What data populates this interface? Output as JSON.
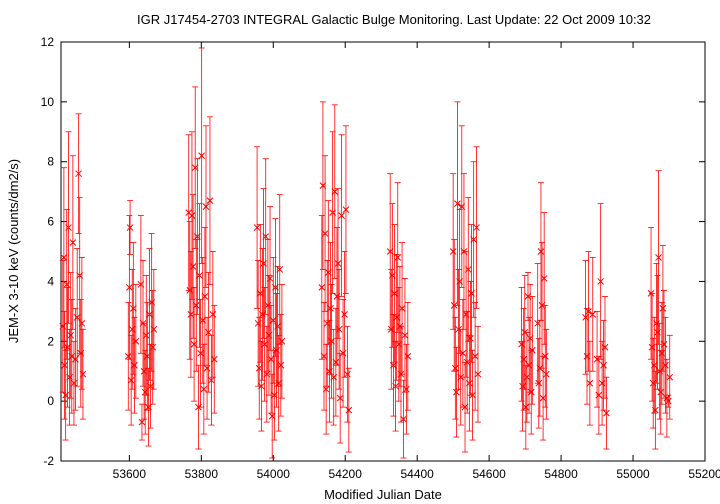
{
  "chart_data": {
    "type": "scatter",
    "title": "IGR J17454-2703   INTEGRAL Galactic Bulge Monitoring.  Last Update: 22 Oct 2009 10:32",
    "xlabel": "Modified Julian Date",
    "ylabel": "JEM-X 3-10 keV (counts/dm2/s)",
    "xlim": [
      53410,
      55200
    ],
    "ylim": [
      -2,
      12
    ],
    "xticks": [
      "53600",
      "53800",
      "54000",
      "54200",
      "54400",
      "54600",
      "54800",
      "55000",
      "55200"
    ],
    "yticks": [
      "-2",
      "0",
      "2",
      "4",
      "6",
      "8",
      "10",
      "12"
    ],
    "grid": false,
    "legend": "none",
    "marker": "x",
    "color": "#ff0000",
    "series": [
      {
        "points": [
          {
            "x": 53415,
            "y": 2.5,
            "err": 2.2
          },
          {
            "x": 53418,
            "y": 4.8,
            "err": 3.0
          },
          {
            "x": 53420,
            "y": 1.2,
            "err": 1.8
          },
          {
            "x": 53423,
            "y": 0.2,
            "err": 1.5
          },
          {
            "x": 53426,
            "y": 3.9,
            "err": 2.5
          },
          {
            "x": 53428,
            "y": 1.8,
            "err": 2.0
          },
          {
            "x": 53431,
            "y": 5.8,
            "err": 3.2
          },
          {
            "x": 53434,
            "y": 0.8,
            "err": 1.6
          },
          {
            "x": 53437,
            "y": 2.2,
            "err": 2.1
          },
          {
            "x": 53440,
            "y": 1.5,
            "err": 1.9
          },
          {
            "x": 53443,
            "y": 5.3,
            "err": 2.9
          },
          {
            "x": 53446,
            "y": 0.6,
            "err": 1.4
          },
          {
            "x": 53450,
            "y": 1.4,
            "err": 1.7
          },
          {
            "x": 53455,
            "y": 2.8,
            "err": 2.3
          },
          {
            "x": 53459,
            "y": 7.6,
            "err": 2.0
          },
          {
            "x": 53462,
            "y": 4.2,
            "err": 2.6
          },
          {
            "x": 53465,
            "y": 1.6,
            "err": 1.8
          },
          {
            "x": 53468,
            "y": 2.6,
            "err": 2.2
          },
          {
            "x": 53471,
            "y": 0.9,
            "err": 1.5
          },
          {
            "x": 53597,
            "y": 1.5,
            "err": 1.8
          },
          {
            "x": 53600,
            "y": 3.8,
            "err": 2.4
          },
          {
            "x": 53602,
            "y": 5.8,
            "err": 0.9
          },
          {
            "x": 53605,
            "y": 0.7,
            "err": 1.5
          },
          {
            "x": 53608,
            "y": 2.4,
            "err": 2.0
          },
          {
            "x": 53611,
            "y": 3.1,
            "err": 2.2
          },
          {
            "x": 53614,
            "y": 1.2,
            "err": 1.6
          },
          {
            "x": 53618,
            "y": 2.0,
            "err": 1.9
          },
          {
            "x": 53632,
            "y": 3.9,
            "err": 2.3
          },
          {
            "x": 53635,
            "y": -0.7,
            "err": 0.6
          },
          {
            "x": 53638,
            "y": 2.6,
            "err": 2.1
          },
          {
            "x": 53641,
            "y": 1.0,
            "err": 1.6
          },
          {
            "x": 53644,
            "y": 0.3,
            "err": 1.4
          },
          {
            "x": 53647,
            "y": 2.2,
            "err": 2.0
          },
          {
            "x": 53650,
            "y": 1.5,
            "err": 1.8
          },
          {
            "x": 53653,
            "y": -0.2,
            "err": 1.3
          },
          {
            "x": 53656,
            "y": 2.9,
            "err": 2.2
          },
          {
            "x": 53659,
            "y": 0.5,
            "err": 1.4
          },
          {
            "x": 53662,
            "y": 3.3,
            "err": 2.3
          },
          {
            "x": 53665,
            "y": 1.8,
            "err": 1.9
          },
          {
            "x": 53668,
            "y": 2.4,
            "err": 2.0
          },
          {
            "x": 53765,
            "y": 6.3,
            "err": 2.6
          },
          {
            "x": 53768,
            "y": 3.7,
            "err": 2.3
          },
          {
            "x": 53771,
            "y": 2.9,
            "err": 2.1
          },
          {
            "x": 53774,
            "y": 6.2,
            "err": 2.8
          },
          {
            "x": 53777,
            "y": 4.5,
            "err": 2.4
          },
          {
            "x": 53780,
            "y": 1.9,
            "err": 1.9
          },
          {
            "x": 53783,
            "y": 7.8,
            "err": 2.7
          },
          {
            "x": 53786,
            "y": 3.2,
            "err": 2.2
          },
          {
            "x": 53789,
            "y": 5.5,
            "err": 2.6
          },
          {
            "x": 53792,
            "y": -0.2,
            "err": 1.4
          },
          {
            "x": 53795,
            "y": 4.2,
            "err": 2.4
          },
          {
            "x": 53798,
            "y": 1.6,
            "err": 1.8
          },
          {
            "x": 53801,
            "y": 8.2,
            "err": 3.6
          },
          {
            "x": 53804,
            "y": 2.7,
            "err": 2.1
          },
          {
            "x": 53807,
            "y": 0.4,
            "err": 1.5
          },
          {
            "x": 53810,
            "y": 3.5,
            "err": 2.3
          },
          {
            "x": 53813,
            "y": 6.5,
            "err": 2.7
          },
          {
            "x": 53816,
            "y": 1.1,
            "err": 1.7
          },
          {
            "x": 53820,
            "y": 2.3,
            "err": 2.0
          },
          {
            "x": 53824,
            "y": 6.7,
            "err": 2.8
          },
          {
            "x": 53828,
            "y": 0.7,
            "err": 1.5
          },
          {
            "x": 53832,
            "y": 2.9,
            "err": 2.1
          },
          {
            "x": 53836,
            "y": 1.4,
            "err": 1.8
          },
          {
            "x": 53955,
            "y": 5.8,
            "err": 2.7
          },
          {
            "x": 53958,
            "y": 2.6,
            "err": 2.1
          },
          {
            "x": 53961,
            "y": 1.1,
            "err": 1.7
          },
          {
            "x": 53964,
            "y": 3.6,
            "err": 2.3
          },
          {
            "x": 53967,
            "y": 0.5,
            "err": 1.5
          },
          {
            "x": 53970,
            "y": 2.9,
            "err": 2.2
          },
          {
            "x": 53973,
            "y": 4.6,
            "err": 2.5
          },
          {
            "x": 53976,
            "y": 1.9,
            "err": 1.9
          },
          {
            "x": 53979,
            "y": 5.5,
            "err": 2.6
          },
          {
            "x": 53982,
            "y": 0.9,
            "err": 1.6
          },
          {
            "x": 53985,
            "y": 3.2,
            "err": 2.2
          },
          {
            "x": 53988,
            "y": 2.2,
            "err": 2.0
          },
          {
            "x": 53991,
            "y": 4.1,
            "err": 2.4
          },
          {
            "x": 53994,
            "y": 1.4,
            "err": 1.8
          },
          {
            "x": 53997,
            "y": -0.5,
            "err": 1.4
          },
          {
            "x": 54000,
            "y": 2.7,
            "err": 2.1
          },
          {
            "x": 54003,
            "y": 0.2,
            "err": 1.5
          },
          {
            "x": 54006,
            "y": 3.8,
            "err": 2.3
          },
          {
            "x": 54009,
            "y": 1.7,
            "err": 1.9
          },
          {
            "x": 54012,
            "y": 2.5,
            "err": 2.0
          },
          {
            "x": 54015,
            "y": 0.6,
            "err": 1.6
          },
          {
            "x": 54018,
            "y": 4.4,
            "err": 2.5
          },
          {
            "x": 54021,
            "y": 1.2,
            "err": 1.7
          },
          {
            "x": 54024,
            "y": 2.0,
            "err": 1.9
          },
          {
            "x": 54135,
            "y": 3.8,
            "err": 2.4
          },
          {
            "x": 54138,
            "y": 7.2,
            "err": 2.8
          },
          {
            "x": 54141,
            "y": 1.5,
            "err": 1.8
          },
          {
            "x": 54144,
            "y": 5.6,
            "err": 2.6
          },
          {
            "x": 54147,
            "y": 0.4,
            "err": 1.5
          },
          {
            "x": 54150,
            "y": 2.6,
            "err": 2.1
          },
          {
            "x": 54153,
            "y": 4.3,
            "err": 2.4
          },
          {
            "x": 54156,
            "y": 1.0,
            "err": 1.7
          },
          {
            "x": 54159,
            "y": 3.1,
            "err": 2.2
          },
          {
            "x": 54162,
            "y": 2.0,
            "err": 1.9
          },
          {
            "x": 54165,
            "y": 6.3,
            "err": 2.7
          },
          {
            "x": 54168,
            "y": 0.8,
            "err": 1.6
          },
          {
            "x": 54171,
            "y": 7.0,
            "err": 2.9
          },
          {
            "x": 54174,
            "y": 1.3,
            "err": 1.8
          },
          {
            "x": 54177,
            "y": 3.5,
            "err": 2.3
          },
          {
            "x": 54180,
            "y": 4.6,
            "err": 2.5
          },
          {
            "x": 54183,
            "y": 2.4,
            "err": 2.0
          },
          {
            "x": 54186,
            "y": 0.1,
            "err": 1.5
          },
          {
            "x": 54190,
            "y": 6.2,
            "err": 2.7
          },
          {
            "x": 54194,
            "y": 1.6,
            "err": 1.8
          },
          {
            "x": 54198,
            "y": 2.9,
            "err": 2.1
          },
          {
            "x": 54202,
            "y": 6.4,
            "err": 2.8
          },
          {
            "x": 54206,
            "y": 0.9,
            "err": 1.6
          },
          {
            "x": 54210,
            "y": -0.3,
            "err": 1.4
          },
          {
            "x": 54325,
            "y": 5.0,
            "err": 2.6
          },
          {
            "x": 54328,
            "y": 2.4,
            "err": 2.0
          },
          {
            "x": 54331,
            "y": 4.2,
            "err": 2.4
          },
          {
            "x": 54334,
            "y": 1.2,
            "err": 1.7
          },
          {
            "x": 54337,
            "y": 3.6,
            "err": 2.3
          },
          {
            "x": 54340,
            "y": 0.5,
            "err": 1.5
          },
          {
            "x": 54343,
            "y": 2.8,
            "err": 2.1
          },
          {
            "x": 54346,
            "y": 4.8,
            "err": 2.5
          },
          {
            "x": 54349,
            "y": 1.9,
            "err": 1.9
          },
          {
            "x": 54352,
            "y": 2.5,
            "err": 2.0
          },
          {
            "x": 54355,
            "y": 0.9,
            "err": 1.6
          },
          {
            "x": 54358,
            "y": 3.1,
            "err": 2.2
          },
          {
            "x": 54362,
            "y": -0.6,
            "err": 1.3
          },
          {
            "x": 54366,
            "y": 2.2,
            "err": 1.9
          },
          {
            "x": 54370,
            "y": 0.4,
            "err": 1.5
          },
          {
            "x": 54374,
            "y": 1.5,
            "err": 1.8
          },
          {
            "x": 54500,
            "y": 5.0,
            "err": 2.6
          },
          {
            "x": 54503,
            "y": 3.2,
            "err": 2.2
          },
          {
            "x": 54506,
            "y": 1.1,
            "err": 1.7
          },
          {
            "x": 54509,
            "y": 0.3,
            "err": 1.5
          },
          {
            "x": 54512,
            "y": 6.6,
            "err": 3.4
          },
          {
            "x": 54515,
            "y": 2.4,
            "err": 2.0
          },
          {
            "x": 54518,
            "y": 4.0,
            "err": 2.4
          },
          {
            "x": 54521,
            "y": 0.8,
            "err": 1.6
          },
          {
            "x": 54524,
            "y": 6.5,
            "err": 2.7
          },
          {
            "x": 54527,
            "y": 1.6,
            "err": 1.8
          },
          {
            "x": 54530,
            "y": 5.0,
            "err": 2.6
          },
          {
            "x": 54533,
            "y": -0.2,
            "err": 1.5
          },
          {
            "x": 54536,
            "y": 2.9,
            "err": 2.1
          },
          {
            "x": 54539,
            "y": 1.3,
            "err": 1.7
          },
          {
            "x": 54542,
            "y": 4.4,
            "err": 2.4
          },
          {
            "x": 54545,
            "y": 0.6,
            "err": 1.6
          },
          {
            "x": 54548,
            "y": 2.1,
            "err": 1.9
          },
          {
            "x": 54551,
            "y": 3.6,
            "err": 2.3
          },
          {
            "x": 54554,
            "y": 0.2,
            "err": 1.5
          },
          {
            "x": 54557,
            "y": 5.4,
            "err": 2.6
          },
          {
            "x": 54561,
            "y": 1.5,
            "err": 1.8
          },
          {
            "x": 54565,
            "y": 5.8,
            "err": 2.7
          },
          {
            "x": 54569,
            "y": 0.9,
            "err": 1.6
          },
          {
            "x": 54690,
            "y": 1.9,
            "err": 1.9
          },
          {
            "x": 54693,
            "y": 0.5,
            "err": 1.5
          },
          {
            "x": 54696,
            "y": 1.4,
            "err": 1.7
          },
          {
            "x": 54699,
            "y": 2.3,
            "err": 1.9
          },
          {
            "x": 54702,
            "y": -0.2,
            "err": 1.4
          },
          {
            "x": 54705,
            "y": 0.8,
            "err": 1.5
          },
          {
            "x": 54708,
            "y": 3.5,
            "err": 0.8
          },
          {
            "x": 54711,
            "y": 1.2,
            "err": 1.6
          },
          {
            "x": 54714,
            "y": 2.1,
            "err": 1.8
          },
          {
            "x": 54717,
            "y": 0.3,
            "err": 1.4
          },
          {
            "x": 54720,
            "y": 1.7,
            "err": 1.8
          },
          {
            "x": 54735,
            "y": 2.6,
            "err": 2.0
          },
          {
            "x": 54738,
            "y": 0.6,
            "err": 1.5
          },
          {
            "x": 54741,
            "y": 1.1,
            "err": 1.6
          },
          {
            "x": 54744,
            "y": 5.0,
            "err": 2.3
          },
          {
            "x": 54747,
            "y": 3.2,
            "err": 2.1
          },
          {
            "x": 54750,
            "y": 0.1,
            "err": 1.4
          },
          {
            "x": 54753,
            "y": 4.1,
            "err": 2.2
          },
          {
            "x": 54756,
            "y": 1.5,
            "err": 1.7
          },
          {
            "x": 54759,
            "y": 0.9,
            "err": 1.5
          },
          {
            "x": 54868,
            "y": 2.8,
            "err": 1.9
          },
          {
            "x": 54872,
            "y": 1.5,
            "err": 1.6
          },
          {
            "x": 54876,
            "y": 3.0,
            "err": 2.0
          },
          {
            "x": 54880,
            "y": 0.6,
            "err": 1.4
          },
          {
            "x": 54888,
            "y": 2.9,
            "err": 1.9
          },
          {
            "x": 54900,
            "y": 1.4,
            "err": 1.6
          },
          {
            "x": 54905,
            "y": 0.2,
            "err": 1.3
          },
          {
            "x": 54910,
            "y": 4.0,
            "err": 2.6
          },
          {
            "x": 54914,
            "y": 0.6,
            "err": 1.4
          },
          {
            "x": 54918,
            "y": 1.2,
            "err": 1.5
          },
          {
            "x": 54922,
            "y": 1.8,
            "err": 1.7
          },
          {
            "x": 54926,
            "y": -0.4,
            "err": 1.2
          },
          {
            "x": 55050,
            "y": 3.6,
            "err": 2.2
          },
          {
            "x": 55053,
            "y": 1.8,
            "err": 1.8
          },
          {
            "x": 55056,
            "y": 0.6,
            "err": 1.5
          },
          {
            "x": 55059,
            "y": 1.2,
            "err": 1.6
          },
          {
            "x": 55062,
            "y": -0.3,
            "err": 1.3
          },
          {
            "x": 55065,
            "y": 2.6,
            "err": 2.0
          },
          {
            "x": 55068,
            "y": 2.3,
            "err": 1.9
          },
          {
            "x": 55071,
            "y": 4.8,
            "err": 2.9
          },
          {
            "x": 55074,
            "y": 1.0,
            "err": 1.6
          },
          {
            "x": 55077,
            "y": 0.3,
            "err": 1.4
          },
          {
            "x": 55080,
            "y": 1.6,
            "err": 1.7
          },
          {
            "x": 55083,
            "y": 3.1,
            "err": 2.1
          },
          {
            "x": 55086,
            "y": 1.9,
            "err": 1.8
          },
          {
            "x": 55090,
            "y": 1.2,
            "err": 1.6
          },
          {
            "x": 55094,
            "y": 0.1,
            "err": 1.3
          },
          {
            "x": 55098,
            "y": 0.0,
            "err": 0.2
          },
          {
            "x": 55102,
            "y": 0.8,
            "err": 1.4
          }
        ]
      }
    ]
  }
}
